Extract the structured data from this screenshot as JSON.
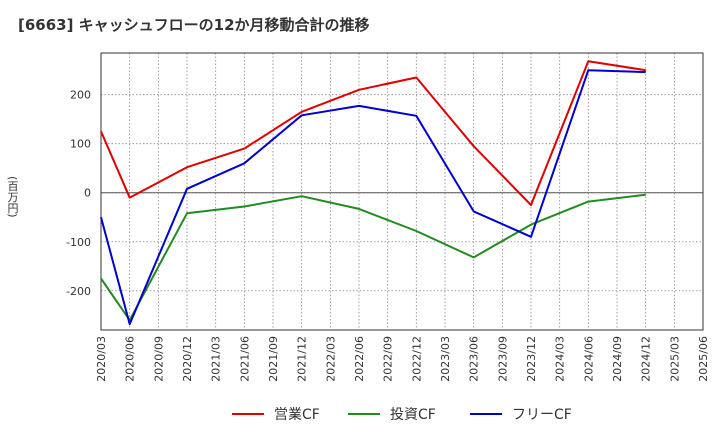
{
  "chart_data": {
    "type": "line",
    "title": "[6663]  キャッシュフローの12か月移動合計の推移",
    "ylabel": "(百万円)",
    "xlabel": "",
    "ylim": [
      -280,
      285
    ],
    "yticks": [
      -200,
      -100,
      0,
      100,
      200
    ],
    "categories": [
      "2020/03",
      "2020/06",
      "2020/09",
      "2020/12",
      "2021/03",
      "2021/06",
      "2021/09",
      "2021/12",
      "2022/03",
      "2022/06",
      "2022/09",
      "2022/12",
      "2023/03",
      "2023/06",
      "2023/09",
      "2023/12",
      "2024/03",
      "2024/06",
      "2024/09",
      "2024/12",
      "2025/03",
      "2025/06"
    ],
    "series": [
      {
        "name": "営業CF",
        "color": "#dd0000",
        "values": [
          125,
          -10,
          null,
          52,
          null,
          90,
          null,
          165,
          null,
          210,
          null,
          235,
          null,
          95,
          null,
          -25,
          null,
          268,
          null,
          250,
          null,
          null
        ]
      },
      {
        "name": "投資CF",
        "color": "#228b22",
        "values": [
          -175,
          -260,
          null,
          -42,
          null,
          -28,
          null,
          -7,
          null,
          -33,
          null,
          -78,
          null,
          -132,
          null,
          -65,
          null,
          -18,
          null,
          -4,
          null,
          null
        ]
      },
      {
        "name": "フリーCF",
        "color": "#0000cc",
        "values": [
          -50,
          -268,
          null,
          8,
          null,
          60,
          null,
          158,
          null,
          177,
          null,
          157,
          null,
          -38,
          null,
          -90,
          null,
          250,
          null,
          246,
          null,
          null
        ]
      }
    ]
  }
}
